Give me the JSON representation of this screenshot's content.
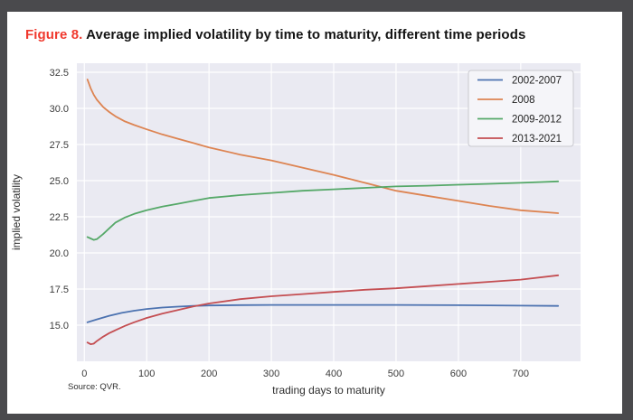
{
  "frame": {
    "border_color": "#4a4a4d",
    "background": "#ffffff"
  },
  "title": {
    "prefix": "Figure 8.",
    "prefix_color": "#f0392e",
    "text": " Average implied volatility by time to maturity, different time periods"
  },
  "source": "Source: QVR.",
  "chart_data": {
    "type": "line",
    "title": "Figure 8. Average implied volatility by time to maturity, different time periods",
    "xlabel": "trading days to maturity",
    "ylabel": "implied volatility",
    "xlim": [
      -12,
      796
    ],
    "ylim": [
      12.5,
      33.125
    ],
    "xticks": [
      0,
      100,
      200,
      300,
      400,
      500,
      600,
      700
    ],
    "yticks": [
      15.0,
      17.5,
      20.0,
      22.5,
      25.0,
      27.5,
      30.0,
      32.5
    ],
    "grid": true,
    "legend_position": "upper right",
    "plot_bg": "#eaeaf2",
    "grid_color": "#ffffff",
    "tick_color": "#3b3b3b",
    "legend_bg": "#f5f5f9",
    "legend_border": "#c9c9cf",
    "series": [
      {
        "name": "2002-2007",
        "color": "#4C72B0",
        "points": [
          [
            5,
            15.2
          ],
          [
            20,
            15.4
          ],
          [
            40,
            15.65
          ],
          [
            60,
            15.85
          ],
          [
            80,
            16.0
          ],
          [
            100,
            16.12
          ],
          [
            125,
            16.22
          ],
          [
            150,
            16.28
          ],
          [
            175,
            16.33
          ],
          [
            200,
            16.36
          ],
          [
            250,
            16.39
          ],
          [
            300,
            16.4
          ],
          [
            400,
            16.4
          ],
          [
            500,
            16.4
          ],
          [
            600,
            16.38
          ],
          [
            700,
            16.35
          ],
          [
            760,
            16.33
          ]
        ]
      },
      {
        "name": "2008",
        "color": "#DD8452",
        "points": [
          [
            5,
            32.0
          ],
          [
            10,
            31.4
          ],
          [
            15,
            30.95
          ],
          [
            20,
            30.6
          ],
          [
            30,
            30.1
          ],
          [
            40,
            29.75
          ],
          [
            50,
            29.45
          ],
          [
            65,
            29.1
          ],
          [
            80,
            28.85
          ],
          [
            100,
            28.55
          ],
          [
            125,
            28.2
          ],
          [
            150,
            27.9
          ],
          [
            175,
            27.6
          ],
          [
            200,
            27.3
          ],
          [
            250,
            26.8
          ],
          [
            300,
            26.4
          ],
          [
            350,
            25.9
          ],
          [
            400,
            25.4
          ],
          [
            450,
            24.85
          ],
          [
            500,
            24.3
          ],
          [
            550,
            23.95
          ],
          [
            600,
            23.6
          ],
          [
            650,
            23.25
          ],
          [
            700,
            22.95
          ],
          [
            760,
            22.75
          ]
        ]
      },
      {
        "name": "2009-2012",
        "color": "#55A868",
        "points": [
          [
            5,
            21.1
          ],
          [
            10,
            21.0
          ],
          [
            15,
            20.9
          ],
          [
            20,
            20.95
          ],
          [
            30,
            21.3
          ],
          [
            40,
            21.7
          ],
          [
            50,
            22.1
          ],
          [
            65,
            22.45
          ],
          [
            80,
            22.7
          ],
          [
            100,
            22.95
          ],
          [
            125,
            23.2
          ],
          [
            150,
            23.4
          ],
          [
            175,
            23.6
          ],
          [
            200,
            23.8
          ],
          [
            250,
            24.0
          ],
          [
            300,
            24.15
          ],
          [
            350,
            24.3
          ],
          [
            400,
            24.4
          ],
          [
            450,
            24.5
          ],
          [
            500,
            24.6
          ],
          [
            550,
            24.65
          ],
          [
            600,
            24.72
          ],
          [
            650,
            24.78
          ],
          [
            700,
            24.85
          ],
          [
            760,
            24.95
          ]
        ]
      },
      {
        "name": "2013-2021",
        "color": "#C44E52",
        "points": [
          [
            5,
            13.8
          ],
          [
            10,
            13.68
          ],
          [
            15,
            13.72
          ],
          [
            20,
            13.9
          ],
          [
            30,
            14.2
          ],
          [
            40,
            14.45
          ],
          [
            50,
            14.65
          ],
          [
            65,
            14.95
          ],
          [
            80,
            15.2
          ],
          [
            100,
            15.5
          ],
          [
            125,
            15.8
          ],
          [
            150,
            16.05
          ],
          [
            175,
            16.3
          ],
          [
            200,
            16.5
          ],
          [
            250,
            16.8
          ],
          [
            300,
            17.0
          ],
          [
            350,
            17.15
          ],
          [
            400,
            17.3
          ],
          [
            450,
            17.45
          ],
          [
            500,
            17.55
          ],
          [
            550,
            17.7
          ],
          [
            600,
            17.85
          ],
          [
            650,
            18.0
          ],
          [
            700,
            18.15
          ],
          [
            760,
            18.45
          ]
        ]
      }
    ]
  }
}
